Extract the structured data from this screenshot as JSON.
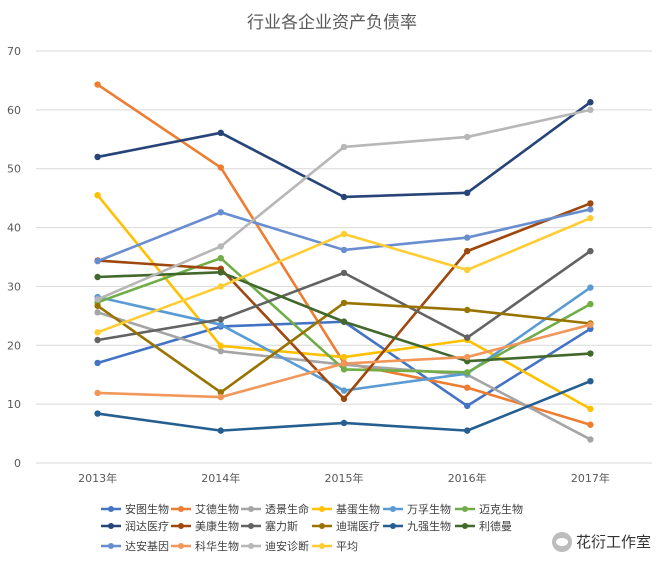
{
  "watermark": {
    "text": "花衍工作室"
  },
  "chart_data": {
    "type": "line",
    "title": "行业各企业资产负债率",
    "categories": [
      "2013年",
      "2014年",
      "2015年",
      "2016年",
      "2017年"
    ],
    "yticks": [
      "0",
      "10",
      "20",
      "30",
      "40",
      "50",
      "60",
      "70"
    ],
    "ylim": [
      0,
      70
    ],
    "grid": true,
    "legend_position": "bottom",
    "series": [
      {
        "name": "安图生物",
        "color": "#4472c4",
        "values": [
          17.0,
          23.2,
          24.0,
          9.7,
          22.8
        ]
      },
      {
        "name": "艾德生物",
        "color": "#ed7d31",
        "values": [
          64.3,
          50.2,
          17.0,
          12.8,
          6.5
        ]
      },
      {
        "name": "透景生命",
        "color": "#a5a5a5",
        "values": [
          25.6,
          19.0,
          16.7,
          15.0,
          4.0
        ]
      },
      {
        "name": "基蛋生物",
        "color": "#ffc000",
        "values": [
          45.5,
          19.9,
          18.0,
          20.9,
          9.2
        ]
      },
      {
        "name": "万孚生物",
        "color": "#5b9bd5",
        "values": [
          28.2,
          23.5,
          12.3,
          15.2,
          29.8
        ]
      },
      {
        "name": "迈克生物",
        "color": "#70ad47",
        "values": [
          27.3,
          34.8,
          15.9,
          15.4,
          27.0
        ]
      },
      {
        "name": "润达医疗",
        "color": "#264478",
        "values": [
          52.0,
          56.1,
          45.2,
          45.9,
          61.3
        ]
      },
      {
        "name": "美康生物",
        "color": "#9e480e",
        "values": [
          34.4,
          33.0,
          10.9,
          36.0,
          44.1
        ]
      },
      {
        "name": "塞力斯",
        "color": "#636363",
        "values": [
          20.9,
          24.4,
          32.3,
          21.3,
          36.0
        ]
      },
      {
        "name": "迪瑞医疗",
        "color": "#997300",
        "values": [
          26.7,
          12.0,
          27.2,
          26.0,
          23.7
        ]
      },
      {
        "name": "九强生物",
        "color": "#255e91",
        "values": [
          8.4,
          5.5,
          6.8,
          5.5,
          13.9
        ]
      },
      {
        "name": "利德曼",
        "color": "#43682b",
        "values": [
          31.6,
          32.4,
          24.0,
          17.3,
          18.6
        ]
      },
      {
        "name": "达安基因",
        "color": "#698ed0",
        "values": [
          34.3,
          42.6,
          36.2,
          38.3,
          43.1
        ]
      },
      {
        "name": "科华生物",
        "color": "#f1975a",
        "values": [
          11.9,
          11.2,
          16.9,
          18.0,
          23.5
        ]
      },
      {
        "name": "迪安诊断",
        "color": "#b7b7b7",
        "values": [
          27.8,
          36.8,
          53.7,
          55.4,
          60.0
        ]
      },
      {
        "name": "平均",
        "color": "#ffcd33",
        "values": [
          22.2,
          30.0,
          38.9,
          32.8,
          41.6
        ]
      }
    ]
  }
}
